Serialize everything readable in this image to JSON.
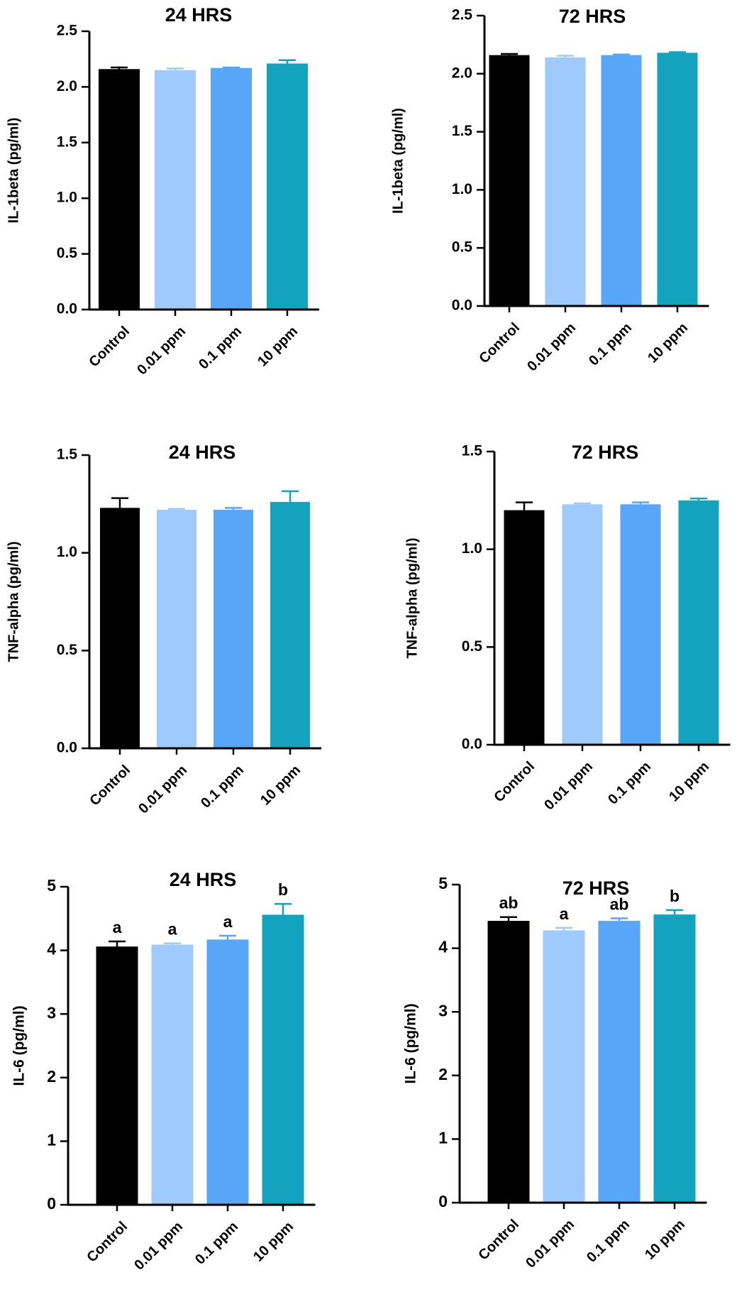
{
  "colors": {
    "axis": "#000000",
    "series": [
      "#000000",
      "#9ECAFC",
      "#58A6F7",
      "#14A3BE"
    ]
  },
  "chart_data": [
    {
      "type": "bar",
      "title": "24 HRS",
      "ylabel": "IL-1beta (pg/ml)",
      "categories": [
        "Control",
        "0.01 ppm",
        "0.1 ppm",
        "10 ppm"
      ],
      "values": [
        2.16,
        2.15,
        2.17,
        2.21
      ],
      "errors": [
        0.015,
        0.015,
        0.005,
        0.03
      ],
      "ylim": [
        0,
        2.5
      ],
      "yticks": [
        "0.0",
        "0.5",
        "1.0",
        "1.5",
        "2.0",
        "2.5"
      ],
      "letters": [
        "",
        "",
        "",
        ""
      ],
      "grid": false
    },
    {
      "type": "bar",
      "title": "72 HRS",
      "ylabel": "IL-1beta (pg/ml)",
      "categories": [
        "Control",
        "0.01 ppm",
        "0.1 ppm",
        "10 ppm"
      ],
      "values": [
        2.16,
        2.14,
        2.16,
        2.18
      ],
      "errors": [
        0.01,
        0.015,
        0.005,
        0.005
      ],
      "ylim": [
        0,
        2.5
      ],
      "yticks": [
        "0.0",
        "0.5",
        "1.0",
        "1.5",
        "2.0",
        "2.5"
      ],
      "letters": [
        "",
        "",
        "",
        ""
      ],
      "grid": false
    },
    {
      "type": "bar",
      "title": "24 HRS",
      "ylabel": "TNF-alpha (pg/ml)",
      "categories": [
        "Control",
        "0.01 ppm",
        "0.1 ppm",
        "10 ppm"
      ],
      "values": [
        1.23,
        1.22,
        1.22,
        1.26
      ],
      "errors": [
        0.05,
        0.005,
        0.01,
        0.055
      ],
      "ylim": [
        0,
        1.5
      ],
      "yticks": [
        "0.0",
        "0.5",
        "1.0",
        "1.5"
      ],
      "letters": [
        "",
        "",
        "",
        ""
      ],
      "grid": false
    },
    {
      "type": "bar",
      "title": "72 HRS",
      "ylabel": "TNF-alpha (pg/ml)",
      "categories": [
        "Control",
        "0.01 ppm",
        "0.1 ppm",
        "10 ppm"
      ],
      "values": [
        1.2,
        1.23,
        1.23,
        1.25
      ],
      "errors": [
        0.04,
        0.005,
        0.01,
        0.01
      ],
      "ylim": [
        0,
        1.5
      ],
      "yticks": [
        "0.0",
        "0.5",
        "1.0",
        "1.5"
      ],
      "letters": [
        "",
        "",
        "",
        ""
      ],
      "grid": false
    },
    {
      "type": "bar",
      "title": "24 HRS",
      "ylabel": "IL-6 (pg/ml)",
      "categories": [
        "Control",
        "0.01 ppm",
        "0.1 ppm",
        "10 ppm"
      ],
      "values": [
        4.06,
        4.09,
        4.17,
        4.56
      ],
      "errors": [
        0.08,
        0.02,
        0.06,
        0.17
      ],
      "ylim": [
        0,
        5
      ],
      "yticks": [
        "0",
        "1",
        "2",
        "3",
        "4",
        "5"
      ],
      "letters": [
        "a",
        "a",
        "a",
        "b"
      ],
      "grid": false
    },
    {
      "type": "bar",
      "title": "72 HRS",
      "ylabel": "IL-6 (pg/ml)",
      "categories": [
        "Control",
        "0.01 ppm",
        "0.1 ppm",
        "10 ppm"
      ],
      "values": [
        4.43,
        4.28,
        4.43,
        4.53
      ],
      "errors": [
        0.06,
        0.04,
        0.04,
        0.07
      ],
      "ylim": [
        0,
        5
      ],
      "yticks": [
        "0",
        "1",
        "2",
        "3",
        "4",
        "5"
      ],
      "letters": [
        "ab",
        "a",
        "ab",
        "b"
      ],
      "grid": false
    }
  ]
}
